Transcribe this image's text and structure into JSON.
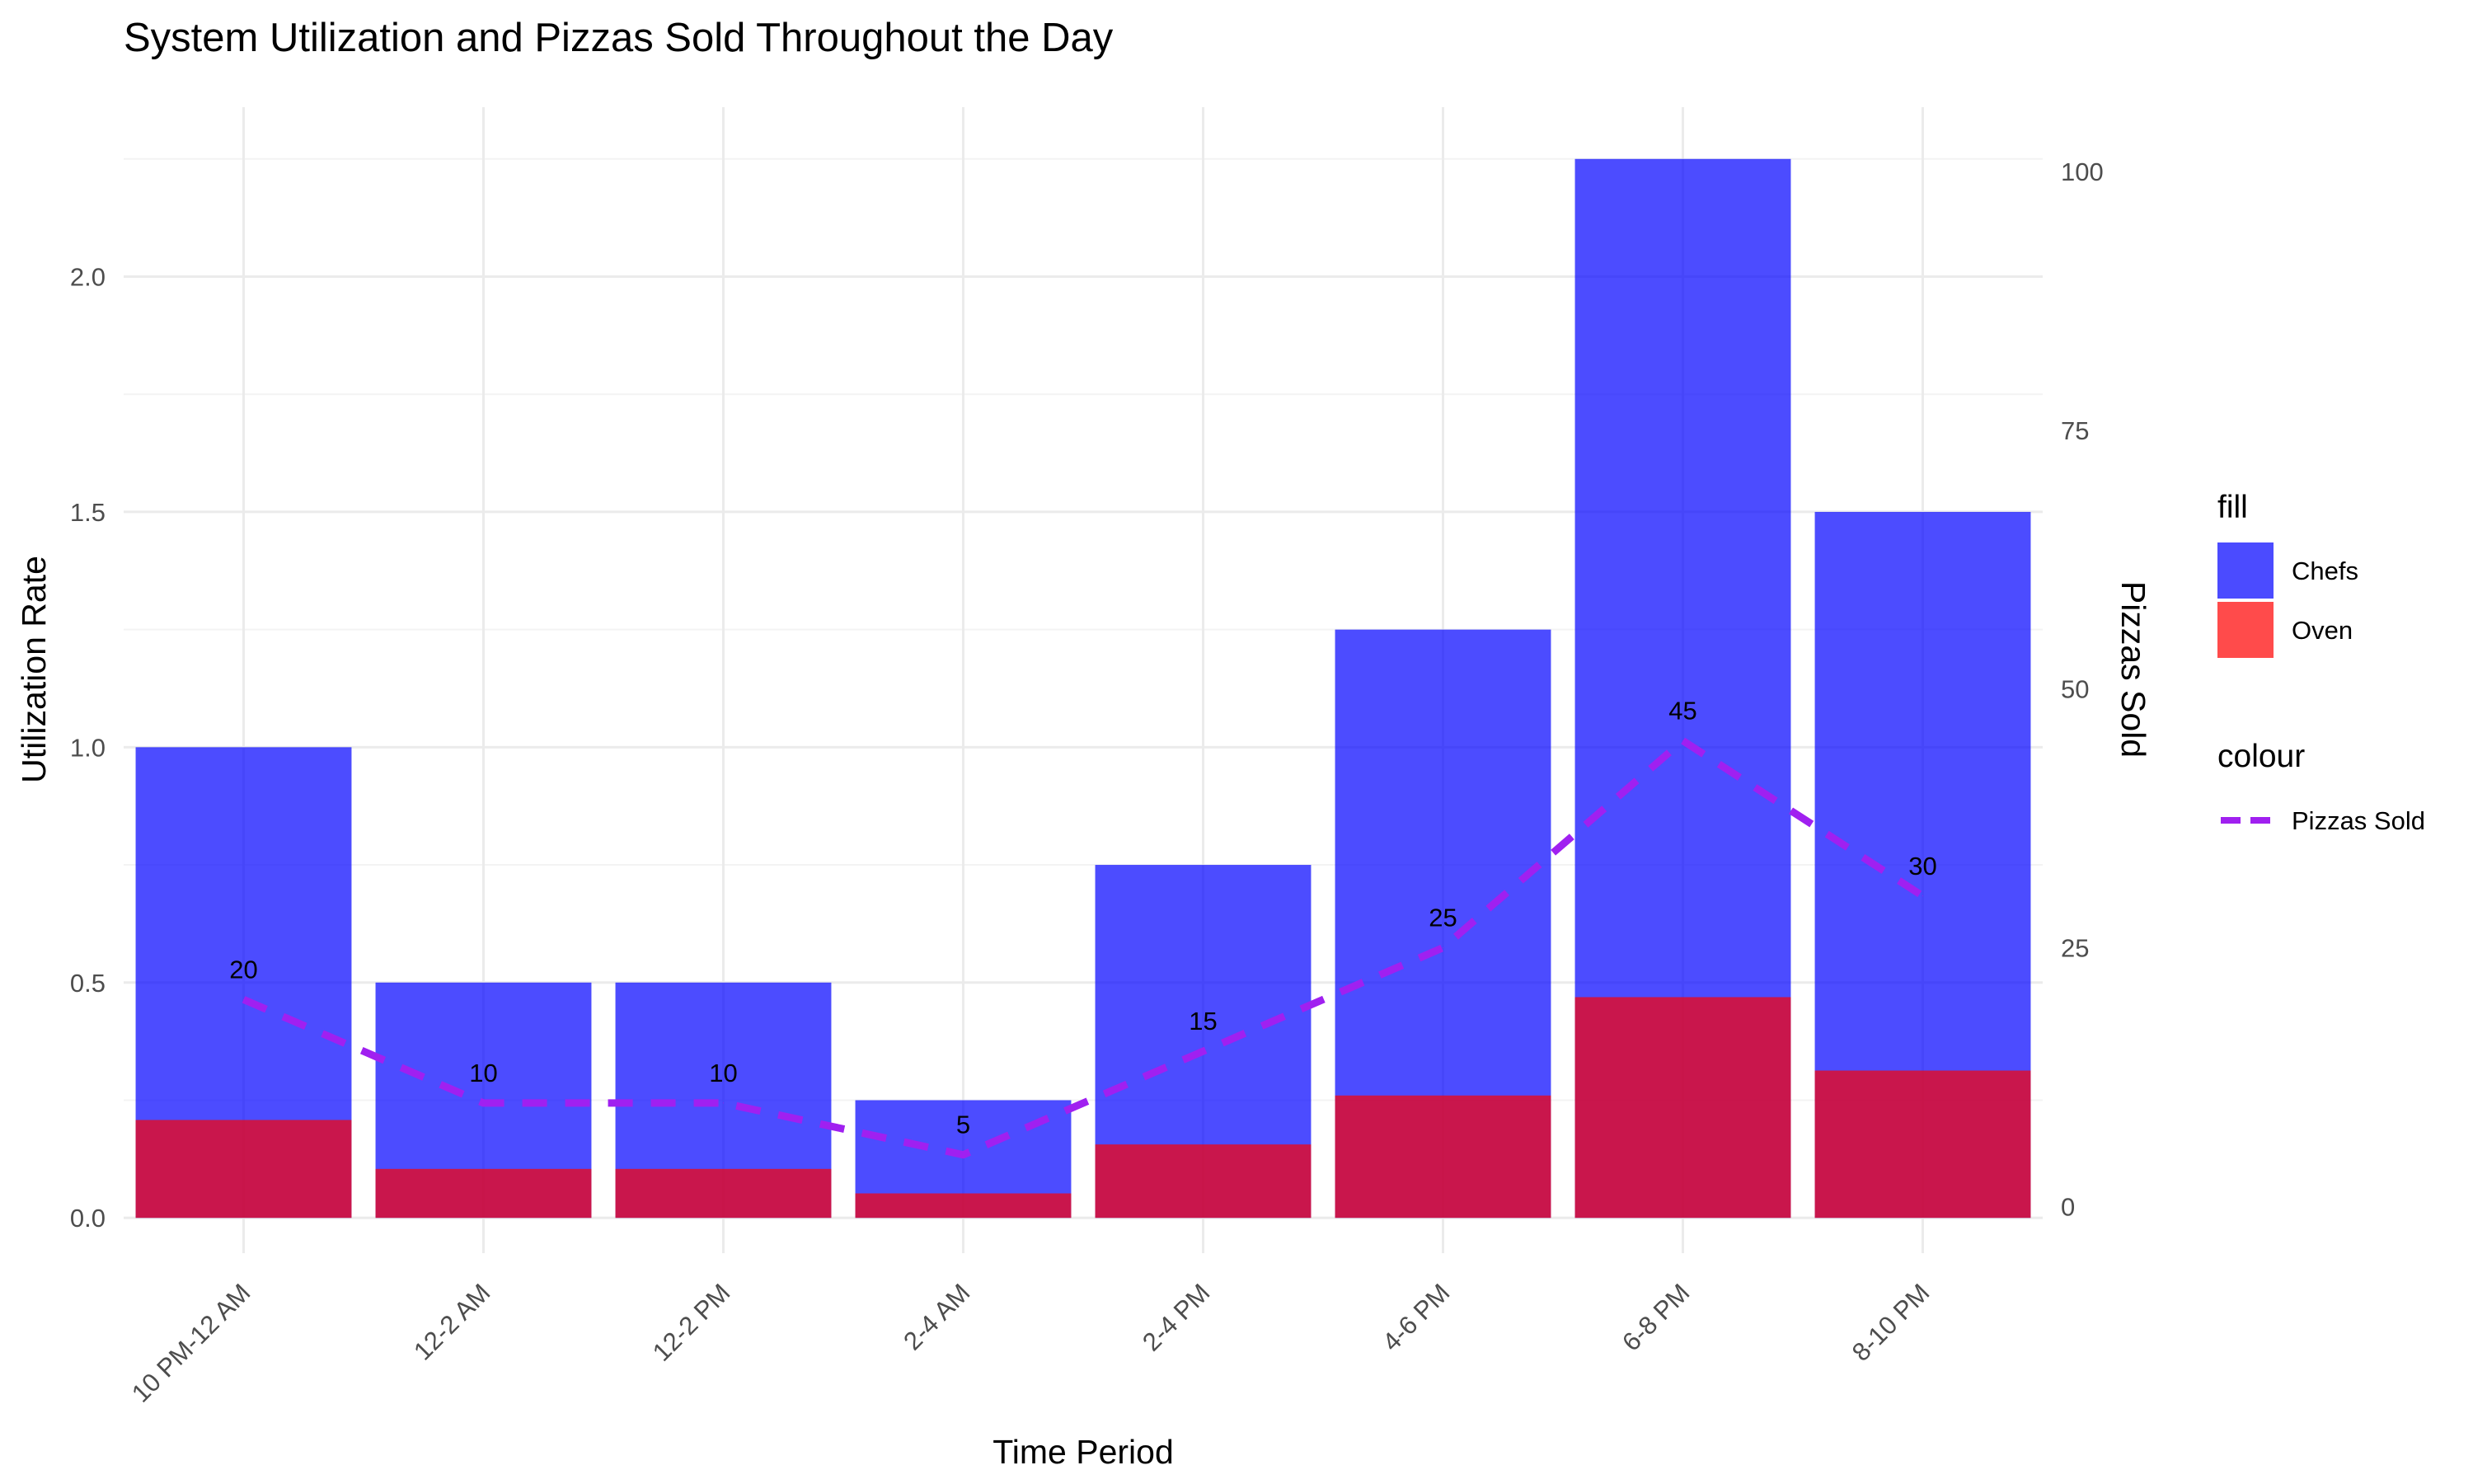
{
  "chart_data": {
    "type": "bar",
    "title": "System Utilization and Pizzas Sold Throughout the Day",
    "xlabel": "Time Period",
    "ylabel": "Utilization Rate",
    "y2label": "Pizzas Sold",
    "categories": [
      "10 PM-12 AM",
      "12-2 AM",
      "12-2 PM",
      "2-4 AM",
      "2-4 PM",
      "4-6 PM",
      "6-8 PM",
      "8-10 PM"
    ],
    "series": [
      {
        "name": "Chefs",
        "kind": "bar",
        "axis": "left",
        "color": "#0000ff",
        "opacity": 0.7,
        "values": [
          1.0,
          0.5,
          0.5,
          0.25,
          0.75,
          1.25,
          2.25,
          1.5
        ]
      },
      {
        "name": "Oven",
        "kind": "bar",
        "axis": "left",
        "color": "#ff0000",
        "opacity": 0.7,
        "values": [
          0.208,
          0.104,
          0.104,
          0.052,
          0.156,
          0.26,
          0.469,
          0.313
        ]
      },
      {
        "name": "Pizzas Sold",
        "kind": "line",
        "axis": "right",
        "color": "#a020f0",
        "dashed": true,
        "values": [
          20,
          10,
          10,
          5,
          15,
          25,
          45,
          30
        ]
      }
    ],
    "data_labels": [
      "20",
      "10",
      "10",
      "5",
      "15",
      "25",
      "45",
      "30"
    ],
    "ylim": [
      -0.075,
      2.36
    ],
    "y_ticks": [
      0.0,
      0.5,
      1.0,
      1.5,
      2.0
    ],
    "y_tick_labels": [
      "0.0",
      "0.5",
      "1.0",
      "1.5",
      "2.0"
    ],
    "y2lim": [
      -4.5,
      106.2
    ],
    "y2_ticks": [
      0,
      25,
      50,
      75,
      100
    ],
    "y2_tick_labels": [
      "0",
      "25",
      "50",
      "75",
      "100"
    ],
    "grid": true,
    "legend": {
      "placement": "right",
      "fill_title": "fill",
      "fill_items": [
        {
          "label": "Chefs",
          "color": "#0000ff"
        },
        {
          "label": "Oven",
          "color": "#ff0000"
        }
      ],
      "colour_title": "colour",
      "colour_items": [
        {
          "label": "Pizzas Sold",
          "color": "#a020f0"
        }
      ]
    }
  }
}
